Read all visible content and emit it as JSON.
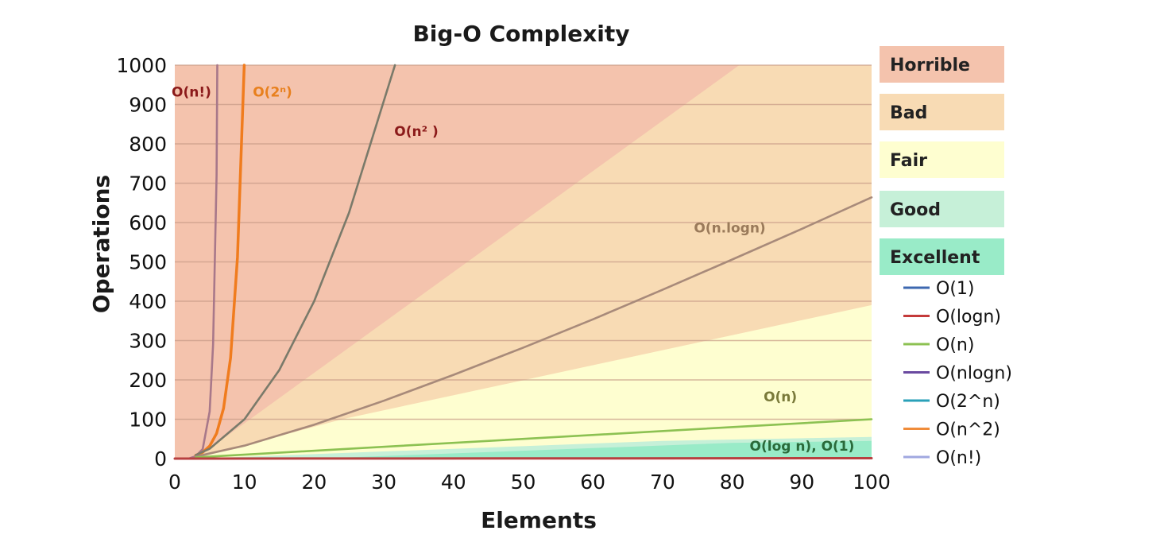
{
  "chart_data": {
    "type": "line",
    "title": "Big-O Complexity",
    "xlabel": "Elements",
    "ylabel": "Operations",
    "xlim": [
      0,
      100
    ],
    "ylim": [
      0,
      1000
    ],
    "x_ticks": [
      0,
      10,
      20,
      30,
      40,
      50,
      60,
      70,
      80,
      90,
      100
    ],
    "y_ticks": [
      0,
      100,
      200,
      300,
      400,
      500,
      600,
      700,
      800,
      900,
      1000
    ],
    "grid": "horizontal",
    "zones": [
      {
        "name": "Horrible",
        "color": "#f4c3ad"
      },
      {
        "name": "Bad",
        "color": "#f8dbb4"
      },
      {
        "name": "Fair",
        "color": "#fefed0"
      },
      {
        "name": "Good",
        "color": "#c6f0d8"
      },
      {
        "name": "Excellent",
        "color": "#99ebc8"
      }
    ],
    "curves": [
      {
        "id": "factorial",
        "label": "O(n!)",
        "color": "#a8788a",
        "label_color": "#8b1a1a",
        "points": [
          [
            2,
            0
          ],
          [
            3,
            6
          ],
          [
            4,
            24
          ],
          [
            5,
            120
          ],
          [
            5.5,
            290
          ],
          [
            6,
            720
          ],
          [
            6.1,
            1000
          ]
        ]
      },
      {
        "id": "exponential",
        "label": "O(2^n)",
        "label_html": "O(2ⁿ)",
        "color": "#f07c1e",
        "label_color": "#e8801e",
        "points": [
          [
            3,
            8
          ],
          [
            4,
            16
          ],
          [
            5,
            32
          ],
          [
            6,
            64
          ],
          [
            7,
            128
          ],
          [
            8,
            256
          ],
          [
            9,
            512
          ],
          [
            9.97,
            1000
          ]
        ]
      },
      {
        "id": "quadratic",
        "label": "O(n^2)",
        "label_html": "O(n² )",
        "color": "#7a7a6a",
        "label_color": "#8b1a1a",
        "points": [
          [
            3,
            9
          ],
          [
            5,
            25
          ],
          [
            10,
            100
          ],
          [
            15,
            225
          ],
          [
            20,
            400
          ],
          [
            25,
            625
          ],
          [
            31.6,
            1000
          ]
        ]
      },
      {
        "id": "linearithmic",
        "label": "O(n.logn)",
        "color": "#a88a7a",
        "label_color": "#9a7a5a",
        "points": [
          [
            3,
            5
          ],
          [
            10,
            33
          ],
          [
            20,
            86
          ],
          [
            30,
            147
          ],
          [
            40,
            213
          ],
          [
            50,
            282
          ],
          [
            60,
            354
          ],
          [
            70,
            429
          ],
          [
            80,
            506
          ],
          [
            90,
            584
          ],
          [
            100,
            664
          ]
        ]
      },
      {
        "id": "linear",
        "label": "O(n)",
        "color": "#8cc152",
        "label_color": "#7a7a3a",
        "points": [
          [
            3,
            3
          ],
          [
            100,
            100
          ]
        ]
      },
      {
        "id": "logconst",
        "label": "O(log n), O(1)",
        "color": "#b84040",
        "label_color": "#2a6a3a",
        "points": [
          [
            0,
            0
          ],
          [
            100,
            1
          ]
        ]
      }
    ],
    "legend": [
      {
        "label": "O(1)",
        "color": "#3d68b0"
      },
      {
        "label": "O(logn)",
        "color": "#c43a3a"
      },
      {
        "label": "O(n)",
        "color": "#8cc152"
      },
      {
        "label": "O(nlogn)",
        "color": "#6a4aa0"
      },
      {
        "label": "O(2^n)",
        "color": "#2aa0b8"
      },
      {
        "label": "O(n^2)",
        "color": "#f08c3a"
      },
      {
        "label": "O(n!)",
        "color": "#a0a8e0"
      }
    ]
  }
}
